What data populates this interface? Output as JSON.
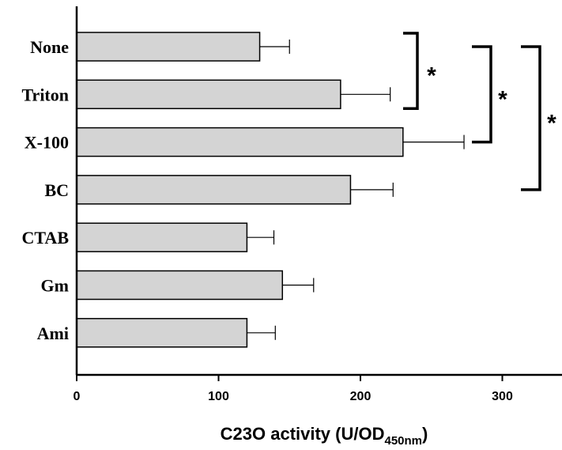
{
  "chart_data": {
    "type": "bar",
    "orientation": "horizontal",
    "categories": [
      "None",
      "Triton",
      "X-100",
      "BC",
      "CTAB",
      "Gm",
      "Ami"
    ],
    "values": [
      129,
      186,
      230,
      193,
      120,
      145,
      120
    ],
    "errors": [
      21,
      35,
      43,
      30,
      19,
      22,
      20
    ],
    "xlim": [
      0,
      340
    ],
    "xticks": [
      0,
      100,
      200,
      300
    ],
    "xlabel": "C23O activity (U/OD",
    "xlabel_subscript": "450nm",
    "xlabel_suffix": ")",
    "bar_color": "#d4d4d4",
    "significance": [
      {
        "from": "None",
        "to": "Triton",
        "label": "*"
      },
      {
        "from": "None",
        "to": "X-100",
        "label": "*"
      },
      {
        "from": "None",
        "to": "BC",
        "label": "*"
      }
    ]
  }
}
